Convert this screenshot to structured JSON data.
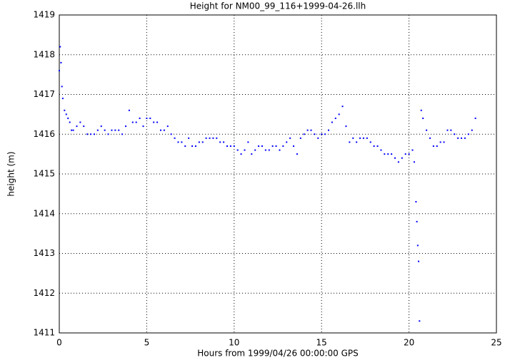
{
  "chart_data": {
    "type": "scatter",
    "title": "Height for NM00_99_116+1999-04-26.llh",
    "xlabel": "Hours from 1999/04/26 00:00:00 GPS",
    "ylabel": "height (m)",
    "color": "#0000ff",
    "grid": true,
    "xlim": [
      0,
      25
    ],
    "xticks": [
      0,
      5,
      10,
      15,
      20,
      25
    ],
    "ylim": [
      1411,
      1419
    ],
    "yticks": [
      1411,
      1412,
      1413,
      1414,
      1415,
      1416,
      1417,
      1418,
      1419
    ],
    "x": [
      0,
      0.05,
      0.1,
      0.15,
      0.2,
      0.3,
      0.4,
      0.5,
      0.6,
      0.7,
      0.8,
      1.0,
      1.2,
      1.4,
      1.6,
      1.8,
      2.0,
      2.2,
      2.4,
      2.6,
      2.8,
      3.0,
      3.2,
      3.4,
      3.6,
      3.8,
      4.0,
      4.2,
      4.4,
      4.6,
      4.8,
      5.0,
      5.2,
      5.4,
      5.6,
      5.8,
      6.0,
      6.2,
      6.4,
      6.6,
      6.8,
      7.0,
      7.2,
      7.4,
      7.6,
      7.8,
      8.0,
      8.2,
      8.4,
      8.6,
      8.8,
      9.0,
      9.2,
      9.4,
      9.6,
      9.8,
      10.0,
      10.2,
      10.4,
      10.6,
      10.8,
      11.0,
      11.2,
      11.4,
      11.6,
      11.8,
      12.0,
      12.2,
      12.4,
      12.6,
      12.8,
      13.0,
      13.2,
      13.4,
      13.6,
      13.8,
      14.0,
      14.2,
      14.4,
      14.6,
      14.8,
      15.0,
      15.2,
      15.4,
      15.6,
      15.8,
      16.0,
      16.2,
      16.4,
      16.6,
      16.8,
      17.0,
      17.2,
      17.4,
      17.6,
      17.8,
      18.0,
      18.2,
      18.4,
      18.6,
      18.8,
      19.0,
      19.2,
      19.4,
      19.6,
      19.8,
      20.0,
      20.2,
      20.3,
      20.4,
      20.45,
      20.5,
      20.55,
      20.6,
      20.7,
      20.8,
      21.0,
      21.2,
      21.4,
      21.6,
      21.8,
      22.0,
      22.2,
      22.4,
      22.6,
      22.8,
      23.0,
      23.2,
      23.4,
      23.6,
      23.8
    ],
    "y": [
      1417.6,
      1418.2,
      1417.8,
      1417.2,
      1416.9,
      1416.6,
      1416.5,
      1416.4,
      1416.3,
      1416.1,
      1416.1,
      1416.2,
      1416.3,
      1416.2,
      1416.0,
      1416.0,
      1416.0,
      1416.1,
      1416.2,
      1416.1,
      1416.0,
      1416.1,
      1416.1,
      1416.1,
      1416.0,
      1416.2,
      1416.6,
      1416.3,
      1416.3,
      1416.4,
      1416.2,
      1416.4,
      1416.4,
      1416.3,
      1416.3,
      1416.1,
      1416.1,
      1416.2,
      1416.0,
      1415.9,
      1415.8,
      1415.8,
      1415.7,
      1415.9,
      1415.7,
      1415.7,
      1415.8,
      1415.8,
      1415.9,
      1415.9,
      1415.9,
      1415.9,
      1415.8,
      1415.8,
      1415.7,
      1415.7,
      1415.7,
      1415.6,
      1415.5,
      1415.6,
      1415.8,
      1415.5,
      1415.6,
      1415.7,
      1415.7,
      1415.6,
      1415.6,
      1415.7,
      1415.7,
      1415.6,
      1415.7,
      1415.8,
      1415.9,
      1415.7,
      1415.5,
      1415.9,
      1416.0,
      1416.1,
      1416.1,
      1416.0,
      1415.9,
      1416.0,
      1416.0,
      1416.1,
      1416.3,
      1416.4,
      1416.5,
      1416.7,
      1416.2,
      1415.8,
      1415.9,
      1415.8,
      1415.9,
      1415.9,
      1415.9,
      1415.8,
      1415.7,
      1415.7,
      1415.6,
      1415.5,
      1415.5,
      1415.5,
      1415.4,
      1415.3,
      1415.4,
      1415.5,
      1415.5,
      1415.6,
      1415.3,
      1414.3,
      1413.8,
      1413.2,
      1412.8,
      1411.3,
      1416.6,
      1416.4,
      1416.1,
      1415.9,
      1415.7,
      1415.7,
      1415.8,
      1415.8,
      1416.1,
      1416.1,
      1416.0,
      1415.9,
      1415.9,
      1415.9,
      1416.0,
      1416.1,
      1416.4
    ]
  }
}
